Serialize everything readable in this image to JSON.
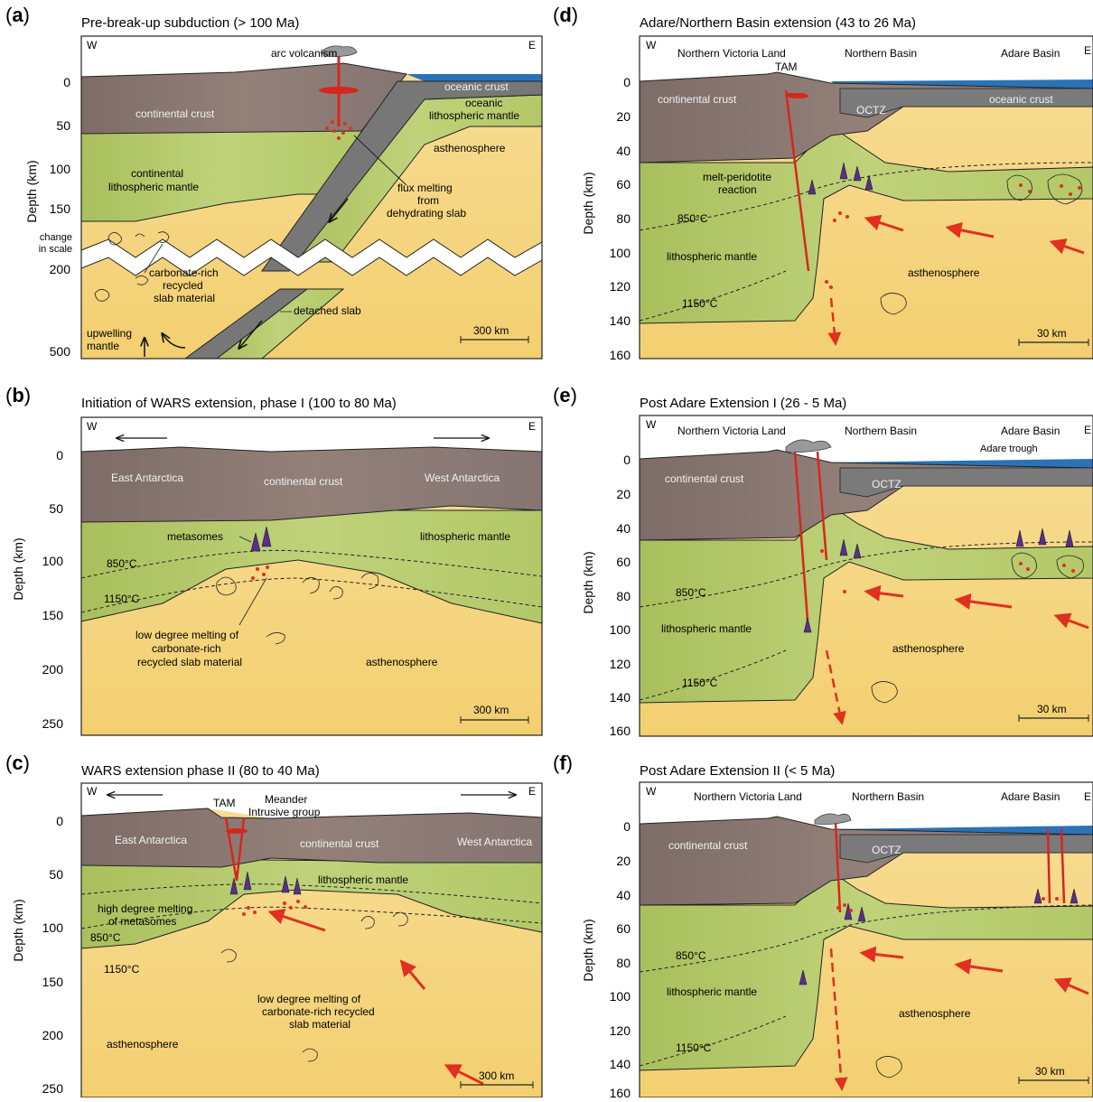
{
  "panels": {
    "a": {
      "letter": "a",
      "title": "Pre-break-up subduction (> 100 Ma)",
      "ylabel": "Depth (km)",
      "ticks": [
        "0",
        "50",
        "100",
        "150",
        "200",
        "500"
      ],
      "scale_change_1": "change",
      "scale_change_2": "in scale",
      "w": "W",
      "e": "E",
      "arc": "arc volcanism",
      "oc_crust": "oceanic crust",
      "oc_lm_1": "oceanic",
      "oc_lm_2": "lithospheric mantle",
      "cont_crust": "continental crust",
      "asth": "asthenosphere",
      "clm_1": "continental",
      "clm_2": "lithospheric mantle",
      "flux_1": "flux melting",
      "flux_2": "from",
      "flux_3": "dehydrating slab",
      "carb_1": "carbonate-rich",
      "carb_2": "recycled",
      "carb_3": "slab material",
      "detached": "detached slab",
      "upw_1": "upwelling",
      "upw_2": "mantle",
      "scale": "300 km"
    },
    "b": {
      "letter": "b",
      "title": "Initiation of WARS extension, phase I (100 to 80 Ma)",
      "ylabel": "Depth (km)",
      "ticks": [
        "0",
        "50",
        "100",
        "150",
        "200",
        "250"
      ],
      "w": "W",
      "e": "E",
      "east_ant": "East Antarctica",
      "cont_crust": "continental crust",
      "west_ant": "West Antarctica",
      "metasomes": "metasomes",
      "lm": "lithospheric mantle",
      "t850": "850°C",
      "t1150": "1150°C",
      "low_1": "low degree melting of",
      "low_2": "carbonate-rich",
      "low_3": "recycled slab material",
      "asth": "asthenosphere",
      "scale": "300 km"
    },
    "c": {
      "letter": "c",
      "title": "WARS extension phase II (80 to 40 Ma)",
      "ylabel": "Depth (km)",
      "ticks": [
        "0",
        "50",
        "100",
        "150",
        "200",
        "250"
      ],
      "w": "W",
      "e": "E",
      "tam": "TAM",
      "meander_1": "Meander",
      "meander_2": "Intrusive group",
      "east_ant": "East Antarctica",
      "cont_crust": "continental crust",
      "west_ant": "West Antarctica",
      "lm": "lithospheric mantle",
      "high_1": "high degree melting",
      "high_2": "of metasomes",
      "t850": "850°C",
      "t1150": "1150°C",
      "low_1": "low degree melting of",
      "low_2": "carbonate-rich recycled",
      "low_3": "slab material",
      "asth": "asthenosphere",
      "scale": "300 km"
    },
    "d": {
      "letter": "d",
      "title": "Adare/Northern Basin extension (43 to 26 Ma)",
      "ylabel": "Depth (km)",
      "ticks": [
        "0",
        "20",
        "40",
        "60",
        "80",
        "100",
        "120",
        "140",
        "160"
      ],
      "w": "W",
      "e": "E",
      "nvl": "Northern Victoria Land",
      "nb": "Northern Basin",
      "ab": "Adare Basin",
      "tam": "TAM",
      "cont_crust": "continental crust",
      "octz": "OCTZ",
      "oc_crust": "oceanic crust",
      "melt_1": "melt-peridotite",
      "melt_2": "reaction",
      "t850": "850°C",
      "lm": "lithospheric mantle",
      "asth": "asthenosphere",
      "t1150": "1150°C",
      "scale": "30 km"
    },
    "e": {
      "letter": "e",
      "title": "Post Adare Extension I (26 - 5 Ma)",
      "ylabel": "Depth (km)",
      "ticks": [
        "0",
        "20",
        "40",
        "60",
        "80",
        "100",
        "120",
        "140",
        "160"
      ],
      "w": "W",
      "e": "E",
      "nvl": "Northern Victoria Land",
      "nb": "Northern Basin",
      "ab": "Adare Basin",
      "trough": "Adare trough",
      "cont_crust": "continental crust",
      "octz": "OCTZ",
      "t850": "850°C",
      "lm": "lithospheric mantle",
      "asth": "asthenosphere",
      "t1150": "1150°C",
      "scale": "30 km"
    },
    "f": {
      "letter": "f",
      "title": "Post Adare Extension II (< 5 Ma)",
      "ylabel": "Depth (km)",
      "ticks": [
        "0",
        "20",
        "40",
        "60",
        "80",
        "100",
        "120",
        "140",
        "160"
      ],
      "w": "W",
      "e": "E",
      "nvl": "Northern Victoria Land",
      "nb": "Northern Basin",
      "ab": "Adare Basin",
      "cont_crust": "continental crust",
      "octz": "OCTZ",
      "t850": "850°C",
      "lm": "lithospheric mantle",
      "asth": "asthenosphere",
      "t1150": "1150°C",
      "scale": "30 km"
    }
  },
  "colors": {
    "asthenosphere": "#f6d98a",
    "lithospheric_mantle": "#b6c96c",
    "crust": "#8a7770",
    "ocean": "#2a73b8",
    "melt_red": "#e03020",
    "metasome_purple": "#5a2e8a",
    "slab_grey": "#777777"
  }
}
